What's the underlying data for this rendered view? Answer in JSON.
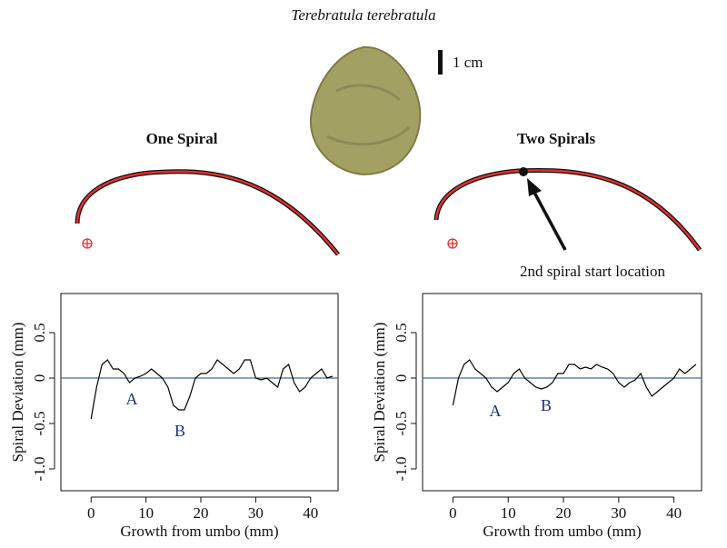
{
  "title": "Terebratula terebratula",
  "scale_label": "1 cm",
  "annotation": "2nd spiral start location",
  "chart_data": [
    {
      "type": "line",
      "title": "One Spiral",
      "xlabel": "Growth from umbo (mm)",
      "ylabel": "Spiral Deviation (mm)",
      "annotations": [
        "A",
        "B"
      ],
      "color": "#000000",
      "hline": 0,
      "hline_color": "#4a6a8a",
      "x": [
        0,
        1,
        2,
        3,
        4,
        5,
        6,
        7,
        8,
        9,
        10,
        11,
        12,
        13,
        14,
        15,
        16,
        17,
        18,
        19,
        20,
        21,
        22,
        23,
        24,
        25,
        26,
        27,
        28,
        29,
        30,
        31,
        32,
        33,
        34,
        35,
        36,
        37,
        38,
        39,
        40,
        41,
        42,
        43,
        44
      ],
      "values": [
        -0.45,
        -0.1,
        0.15,
        0.2,
        0.1,
        0.1,
        0.05,
        -0.05,
        0,
        0.02,
        0.05,
        0.1,
        0.05,
        0,
        -0.1,
        -0.3,
        -0.35,
        -0.35,
        -0.2,
        0,
        0.05,
        0.05,
        0.1,
        0.2,
        0.15,
        0.1,
        0.05,
        0.1,
        0.2,
        0.2,
        0,
        -0.02,
        0,
        -0.05,
        -0.1,
        0.1,
        0.15,
        -0.05,
        -0.15,
        -0.1,
        0,
        0.05,
        0.1,
        0,
        0.02
      ],
      "xlim": [
        -5.5,
        45
      ],
      "ylim": [
        -1.24,
        0.93
      ],
      "xticks": [
        0,
        10,
        20,
        30,
        40
      ],
      "yticks": [
        {
          "value": -1,
          "label": "-1.0"
        },
        -0.5,
        0,
        0.5
      ]
    },
    {
      "type": "line",
      "title": "Two Spirals",
      "xlabel": "Growth from umbo (mm)",
      "ylabel": "Spiral Deviation (mm)",
      "annotations": [
        "A",
        "B"
      ],
      "color": "#000000",
      "hline": 0,
      "hline_color": "#4a6a8a",
      "x": [
        0,
        1,
        2,
        3,
        4,
        5,
        6,
        7,
        8,
        9,
        10,
        11,
        12,
        13,
        14,
        15,
        16,
        17,
        18,
        19,
        20,
        21,
        22,
        23,
        24,
        25,
        26,
        27,
        28,
        29,
        30,
        31,
        32,
        33,
        34,
        35,
        36,
        37,
        38,
        39,
        40,
        41,
        42,
        43,
        44
      ],
      "values": [
        -0.3,
        0,
        0.15,
        0.2,
        0.1,
        0.05,
        0,
        -0.1,
        -0.15,
        -0.1,
        -0.05,
        0.05,
        0.1,
        0,
        -0.05,
        -0.1,
        -0.12,
        -0.1,
        -0.05,
        0.05,
        0.05,
        0.15,
        0.15,
        0.1,
        0.12,
        0.1,
        0.15,
        0.12,
        0.1,
        0.05,
        -0.05,
        -0.1,
        -0.05,
        -0.02,
        0.05,
        -0.1,
        -0.2,
        -0.15,
        -0.1,
        -0.05,
        0,
        0.1,
        0.05,
        0.1,
        0.15
      ],
      "xlim": [
        -5.5,
        45
      ],
      "ylim": [
        -1.24,
        0.93
      ],
      "xticks": [
        0,
        10,
        20,
        30,
        40
      ],
      "yticks": [
        {
          "value": -1,
          "label": "-1.0"
        },
        -0.5,
        0,
        0.5
      ]
    }
  ]
}
